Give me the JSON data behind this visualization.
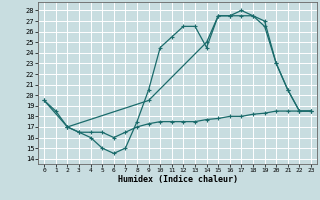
{
  "xlabel": "Humidex (Indice chaleur)",
  "background_color": "#c8dde0",
  "grid_color": "#ffffff",
  "line_color": "#1a6b6b",
  "xlim": [
    -0.5,
    23.5
  ],
  "ylim": [
    13.5,
    28.8
  ],
  "yticks": [
    14,
    15,
    16,
    17,
    18,
    19,
    20,
    21,
    22,
    23,
    24,
    25,
    26,
    27,
    28
  ],
  "xticks": [
    0,
    1,
    2,
    3,
    4,
    5,
    6,
    7,
    8,
    9,
    10,
    11,
    12,
    13,
    14,
    15,
    16,
    17,
    18,
    19,
    20,
    21,
    22,
    23
  ],
  "line1_x": [
    0,
    1,
    2,
    3,
    4,
    5,
    6,
    7,
    8,
    9,
    10,
    11,
    12,
    13,
    14,
    15,
    16,
    17,
    18,
    19,
    20,
    21,
    22,
    23
  ],
  "line1_y": [
    19.5,
    18.5,
    17.0,
    16.5,
    16.0,
    15.0,
    14.5,
    15.0,
    17.5,
    20.5,
    24.5,
    25.5,
    26.5,
    26.5,
    24.5,
    27.5,
    27.5,
    28.0,
    27.5,
    27.0,
    23.0,
    20.5,
    18.5,
    18.5
  ],
  "line2_x": [
    0,
    2,
    9,
    14,
    15,
    16,
    17,
    18,
    19,
    20,
    21,
    22,
    23
  ],
  "line2_y": [
    19.5,
    17.0,
    19.5,
    25.0,
    27.5,
    27.5,
    27.5,
    27.5,
    26.5,
    23.0,
    20.5,
    18.5,
    18.5
  ],
  "line3_x": [
    2,
    3,
    4,
    5,
    6,
    7,
    8,
    9,
    10,
    11,
    12,
    13,
    14,
    15,
    16,
    17,
    18,
    19,
    20,
    21,
    22,
    23
  ],
  "line3_y": [
    17.0,
    16.5,
    16.5,
    16.5,
    16.0,
    16.5,
    17.0,
    17.3,
    17.5,
    17.5,
    17.5,
    17.5,
    17.7,
    17.8,
    18.0,
    18.0,
    18.2,
    18.3,
    18.5,
    18.5,
    18.5,
    18.5
  ]
}
